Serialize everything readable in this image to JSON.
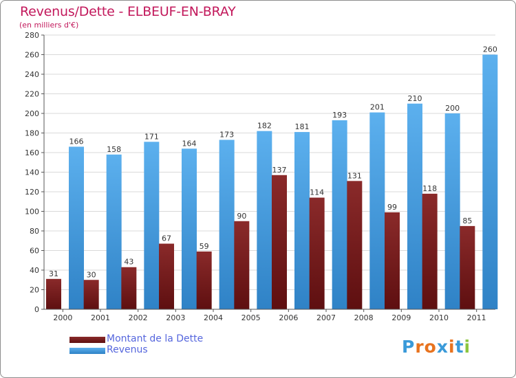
{
  "header": {
    "title": "Revenus/Dette - ELBEUF-EN-BRAY",
    "subtitle": "(en milliers d'€)"
  },
  "colors": {
    "title": "#c2185b",
    "debt": "#7a1e1e",
    "revenue": "#4aa3e6",
    "grid": "#d9d9d9",
    "legend_text": "#5566dd"
  },
  "logo": {
    "text": "Proxiti",
    "letter_colors": [
      "#3a9ad9",
      "#e8731f",
      "#e8731f",
      "#3a9ad9",
      "#e8731f",
      "#3a9ad9",
      "#8cc63f"
    ]
  },
  "chart_data": {
    "type": "bar",
    "title": "Revenus/Dette - ELBEUF-EN-BRAY",
    "subtitle": "(en milliers d'€)",
    "xlabel": "",
    "ylabel": "",
    "categories": [
      "2000",
      "2001",
      "2002",
      "2003",
      "2004",
      "2005",
      "2006",
      "2007",
      "2008",
      "2009",
      "2010",
      "2011"
    ],
    "series": [
      {
        "name": "Montant de la Dette",
        "color": "#7a1e1e",
        "values": [
          31,
          30,
          43,
          67,
          59,
          90,
          137,
          114,
          131,
          99,
          118,
          85
        ]
      },
      {
        "name": "Revenus",
        "color": "#4aa3e6",
        "values": [
          166,
          158,
          171,
          164,
          173,
          182,
          181,
          193,
          201,
          210,
          200,
          260
        ]
      }
    ],
    "ylim": [
      0,
      280
    ],
    "yticks": [
      0,
      20,
      40,
      60,
      80,
      100,
      120,
      140,
      160,
      180,
      200,
      220,
      240,
      260,
      280
    ],
    "grid": true,
    "legend_position": "bottom-left"
  }
}
